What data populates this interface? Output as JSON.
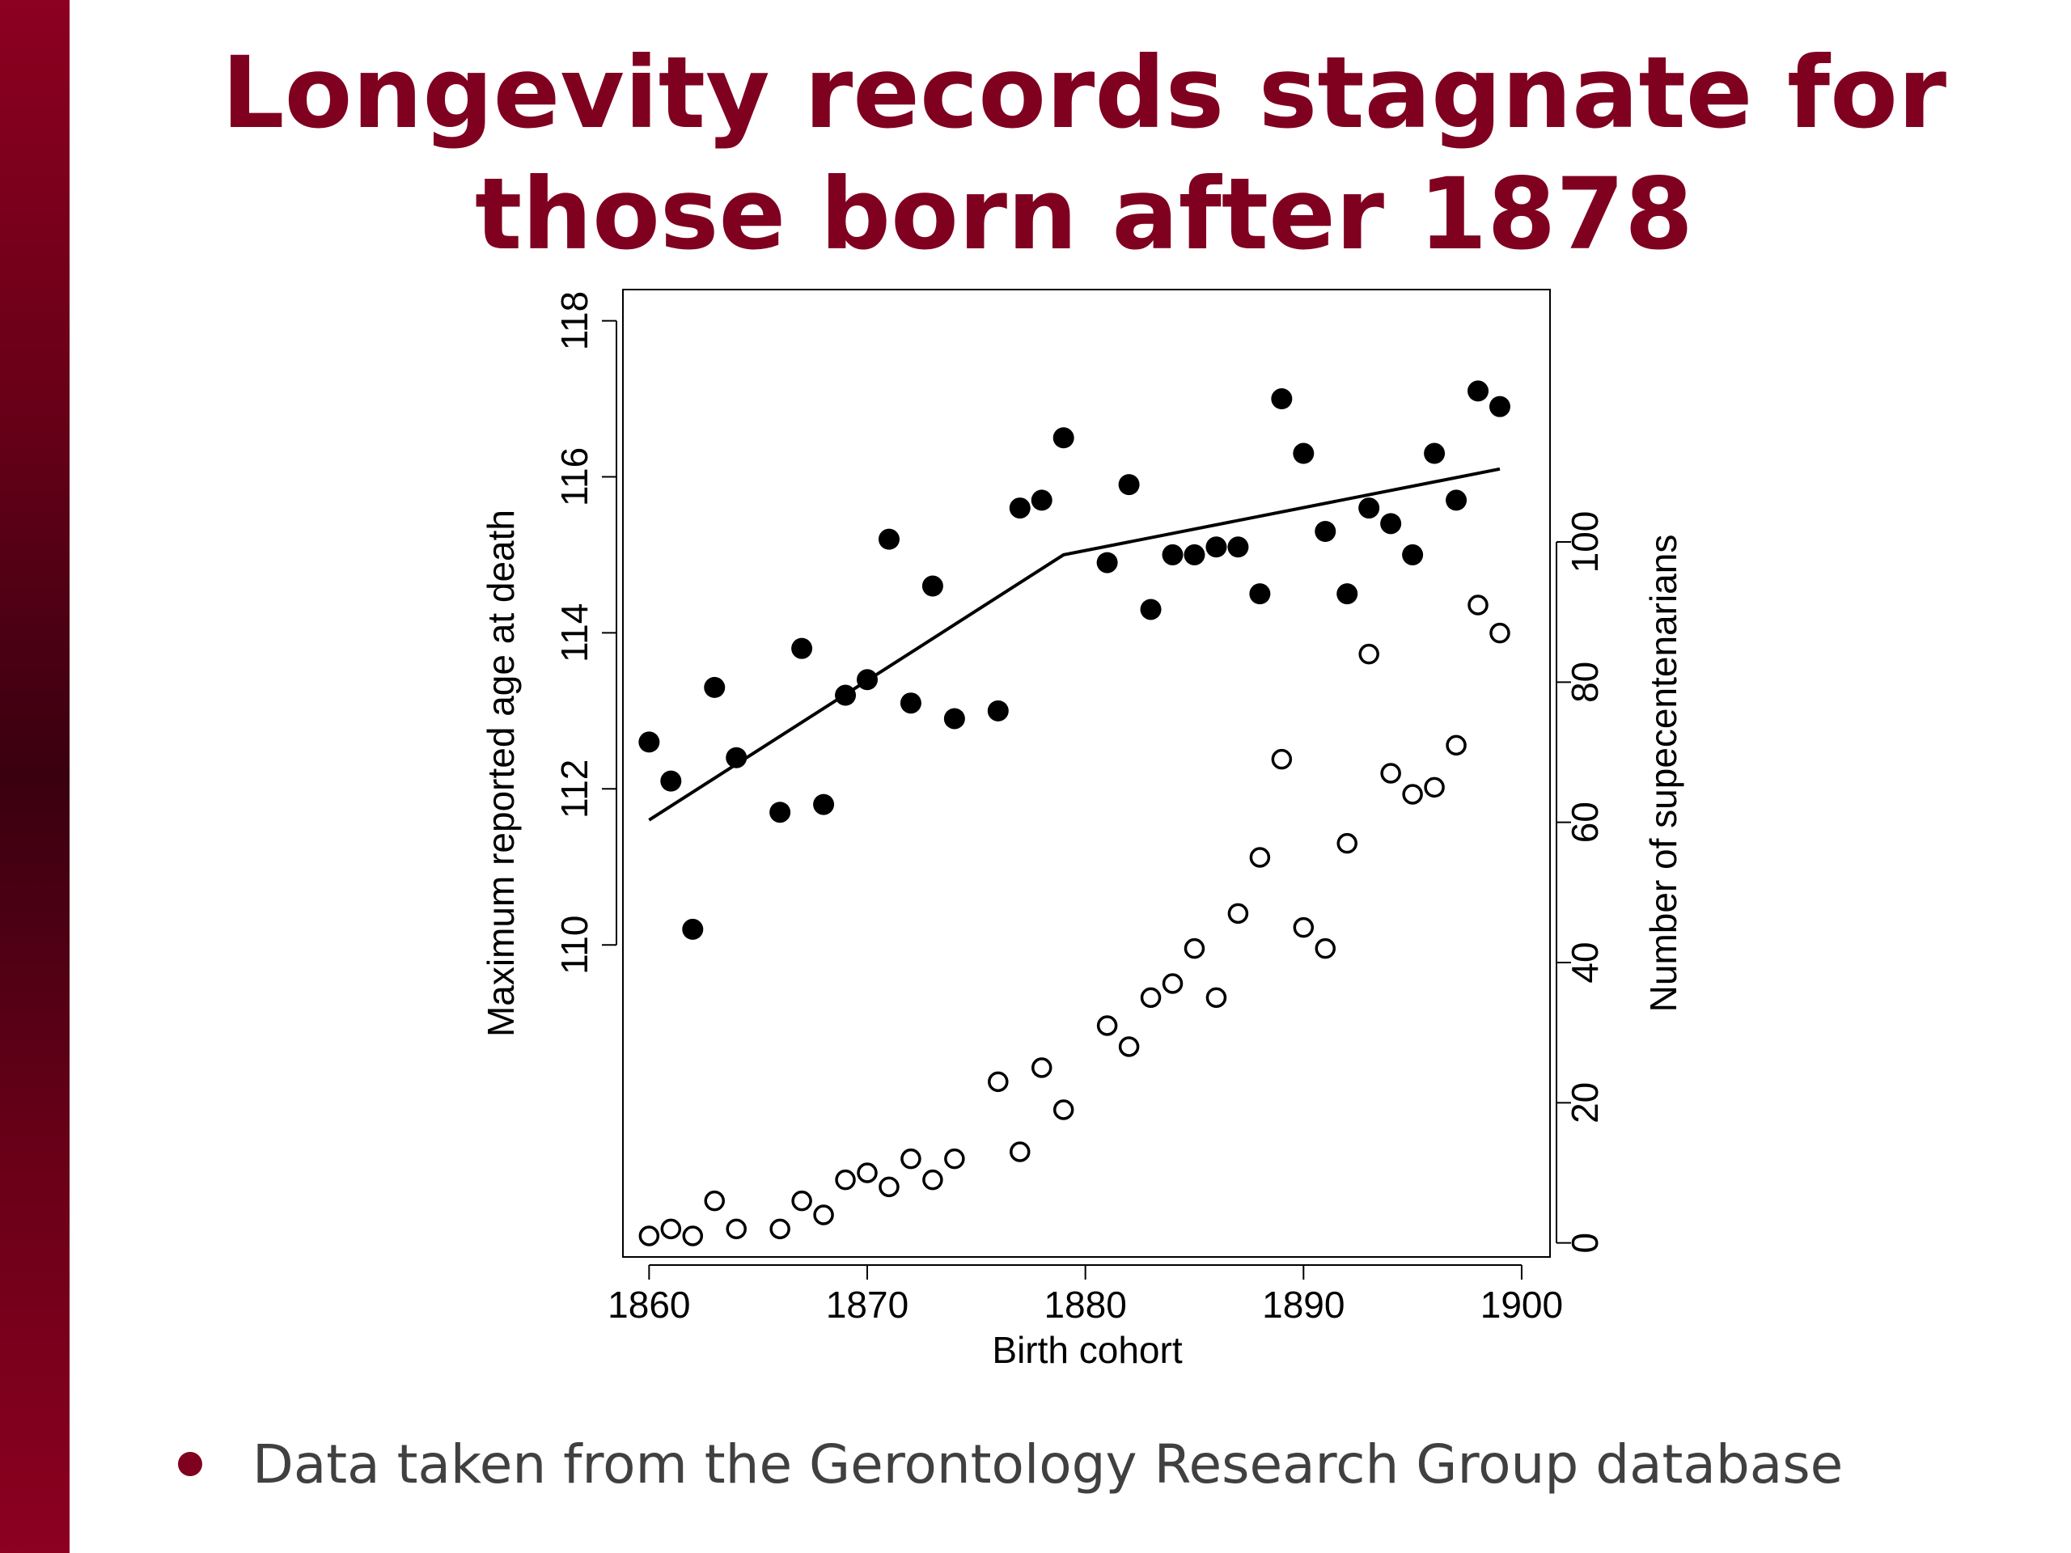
{
  "slide": {
    "title_line1": "Longevity records stagnate for",
    "title_line2": "those born after 1878",
    "bullet": "Data taken from the Gerontology Research Group database",
    "accent_color": "#800020"
  },
  "chart_data": {
    "type": "scatter",
    "xlabel": "Birth cohort",
    "ylabel_left": "Maximum reported age at death",
    "ylabel_right": "Number of supecentenarians",
    "xlim": [
      1858.8,
      1901.3
    ],
    "ylim_left": [
      106,
      118.4
    ],
    "ylim_right": [
      -2,
      136
    ],
    "x_ticks": [
      1860,
      1870,
      1880,
      1890,
      1900
    ],
    "y_left_ticks": [
      110,
      112,
      114,
      116,
      118
    ],
    "y_right_ticks": [
      0,
      20,
      40,
      60,
      80,
      100
    ],
    "grid": false,
    "series": [
      {
        "axis": "left",
        "marker": "filled-circle",
        "points": [
          [
            1860,
            112.6
          ],
          [
            1861,
            112.1
          ],
          [
            1862,
            110.2
          ],
          [
            1863,
            113.3
          ],
          [
            1864,
            112.4
          ],
          [
            1866,
            111.7
          ],
          [
            1867,
            113.8
          ],
          [
            1868,
            111.8
          ],
          [
            1869,
            113.2
          ],
          [
            1870,
            113.4
          ],
          [
            1871,
            115.2
          ],
          [
            1872,
            113.1
          ],
          [
            1873,
            114.6
          ],
          [
            1874,
            112.9
          ],
          [
            1876,
            113.0
          ],
          [
            1877,
            115.6
          ],
          [
            1878,
            115.7
          ],
          [
            1879,
            116.5
          ],
          [
            1881,
            114.9
          ],
          [
            1882,
            115.9
          ],
          [
            1883,
            114.3
          ],
          [
            1884,
            115.0
          ],
          [
            1885,
            115.0
          ],
          [
            1886,
            115.1
          ],
          [
            1887,
            115.1
          ],
          [
            1888,
            114.5
          ],
          [
            1889,
            117.0
          ],
          [
            1890,
            116.3
          ],
          [
            1891,
            115.3
          ],
          [
            1892,
            114.5
          ],
          [
            1893,
            115.6
          ],
          [
            1894,
            115.4
          ],
          [
            1895,
            115.0
          ],
          [
            1896,
            116.3
          ],
          [
            1897,
            115.7
          ],
          [
            1898,
            117.1
          ],
          [
            1899,
            116.9
          ]
        ]
      },
      {
        "axis": "right",
        "marker": "open-circle",
        "points": [
          [
            1860,
            1
          ],
          [
            1861,
            2
          ],
          [
            1862,
            1
          ],
          [
            1863,
            6
          ],
          [
            1864,
            2
          ],
          [
            1866,
            2
          ],
          [
            1867,
            6
          ],
          [
            1868,
            4
          ],
          [
            1869,
            9
          ],
          [
            1870,
            10
          ],
          [
            1871,
            8
          ],
          [
            1872,
            12
          ],
          [
            1873,
            9
          ],
          [
            1874,
            12
          ],
          [
            1876,
            23
          ],
          [
            1877,
            13
          ],
          [
            1878,
            25
          ],
          [
            1879,
            19
          ],
          [
            1881,
            31
          ],
          [
            1882,
            28
          ],
          [
            1883,
            35
          ],
          [
            1884,
            37
          ],
          [
            1885,
            42
          ],
          [
            1886,
            35
          ],
          [
            1887,
            47
          ],
          [
            1888,
            55
          ],
          [
            1889,
            69
          ],
          [
            1890,
            45
          ],
          [
            1891,
            42
          ],
          [
            1892,
            57
          ],
          [
            1893,
            84
          ],
          [
            1894,
            67
          ],
          [
            1895,
            64
          ],
          [
            1896,
            65
          ],
          [
            1897,
            71
          ],
          [
            1898,
            91
          ],
          [
            1899,
            87
          ]
        ]
      },
      {
        "axis": "left",
        "marker": "line",
        "points": [
          [
            1860,
            111.6
          ],
          [
            1879,
            115.0
          ],
          [
            1899,
            116.1
          ]
        ]
      }
    ]
  }
}
